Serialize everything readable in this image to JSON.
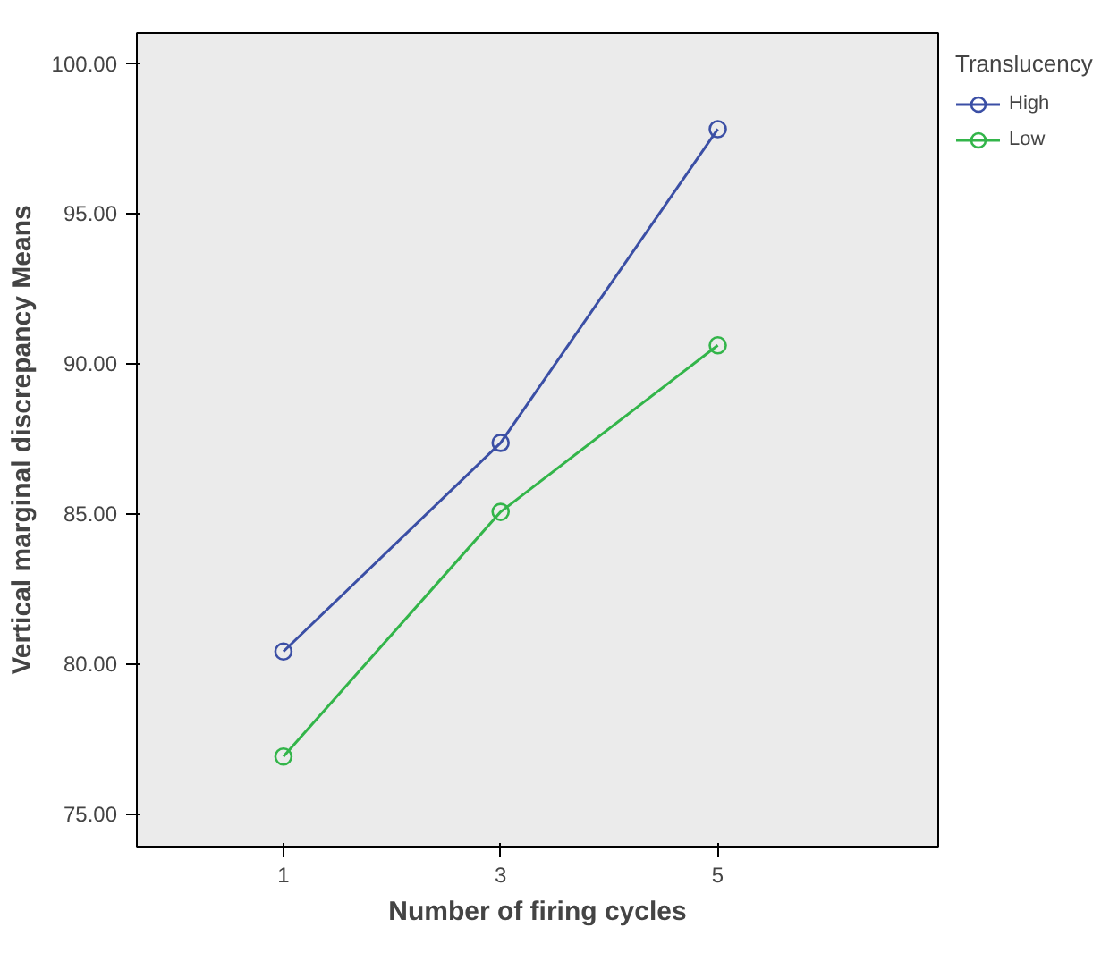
{
  "chart_data": {
    "type": "line",
    "xlabel": "Number of firing cycles",
    "ylabel": "Vertical marginal discrepancy Means",
    "legend_title": "Translucency",
    "x": [
      1,
      3,
      5
    ],
    "series": [
      {
        "name": "High",
        "color": "#3b4fa5",
        "values": [
          80.4,
          87.35,
          97.8
        ]
      },
      {
        "name": "Low",
        "color": "#33b54a",
        "values": [
          76.9,
          85.05,
          90.6
        ]
      }
    ],
    "xlim": [
      -0.35,
      7.03
    ],
    "xticks": [
      1,
      3,
      5
    ],
    "ylim": [
      73.9,
      101
    ],
    "yticks": [
      {
        "value": 75,
        "label": "75.00"
      },
      {
        "value": 80,
        "label": "80.00"
      },
      {
        "value": 85,
        "label": "85.00"
      },
      {
        "value": 90,
        "label": "90.00"
      },
      {
        "value": 95,
        "label": "95.00"
      },
      {
        "value": 100,
        "label": "100.00"
      }
    ],
    "marker": "circle",
    "line_style": "solid",
    "grid": false,
    "legend": "top right"
  }
}
